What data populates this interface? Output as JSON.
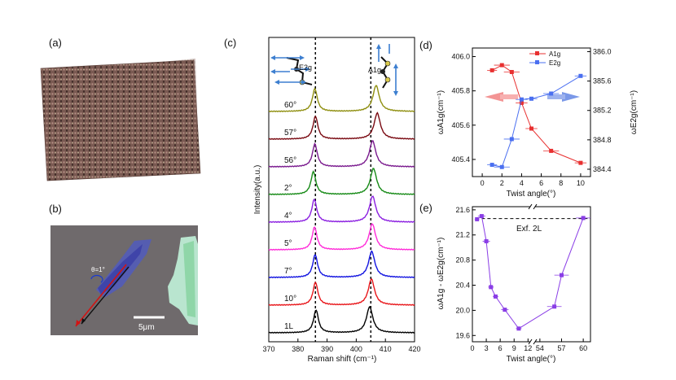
{
  "panels": {
    "a": {
      "label": "(a)"
    },
    "b": {
      "label": "(b)",
      "angle_text": "θ=1°",
      "scalebar": "5μm"
    },
    "c": {
      "label": "(c)",
      "chart_data": {
        "type": "line",
        "title": "",
        "xlabel": "Raman shift (cm⁻¹)",
        "ylabel": "Intensity(a.u.)",
        "xlim": [
          370,
          420
        ],
        "xticks": [
          370,
          380,
          390,
          400,
          410,
          420
        ],
        "dashed_lines": [
          386,
          405
        ],
        "mode_labels": {
          "left": "E2g",
          "right": "A1g"
        },
        "series": [
          {
            "name": "1L",
            "color": "#000000",
            "e2g": 386.2,
            "a1g": 404.6
          },
          {
            "name": "10°",
            "color": "#e8161a",
            "e2g": 386.0,
            "a1g": 405.2
          },
          {
            "name": "7°",
            "color": "#1214e0",
            "e2g": 385.9,
            "a1g": 405.3
          },
          {
            "name": "5°",
            "color": "#ff2bd8",
            "e2g": 385.7,
            "a1g": 405.5
          },
          {
            "name": "4°",
            "color": "#8a1ee0",
            "e2g": 385.6,
            "a1g": 405.6
          },
          {
            "name": "2°",
            "color": "#168a16",
            "e2g": 385.3,
            "a1g": 405.9
          },
          {
            "name": "56°",
            "color": "#7a1a8e",
            "e2g": 385.8,
            "a1g": 405.6
          },
          {
            "name": "57°",
            "color": "#7a0a12",
            "e2g": 386.0,
            "a1g": 407.2
          },
          {
            "name": "60°",
            "color": "#8f8f10",
            "e2g": 385.8,
            "a1g": 406.8
          }
        ]
      }
    },
    "d": {
      "label": "(d)",
      "chart_data": {
        "type": "scatter",
        "xlabel": "Twist angle(°)",
        "ylabel_left": "ωA1g(cm⁻¹)",
        "ylabel_right": "ωE2g(cm⁻¹)",
        "xlim": [
          -1,
          11
        ],
        "xticks": [
          0,
          2,
          4,
          6,
          8,
          10
        ],
        "ylim_left": [
          405.3,
          406.05
        ],
        "yticks_left": [
          405.4,
          405.6,
          405.8,
          406.0
        ],
        "ylim_right": [
          384.3,
          386.05
        ],
        "yticks_right": [
          384.4,
          384.8,
          385.2,
          385.6,
          386.0
        ],
        "legend": [
          "A1g",
          "E2g"
        ],
        "series": [
          {
            "name": "A1g",
            "axis": "left",
            "color": "#e83030",
            "x": [
              1,
              2,
              3,
              4,
              5,
              7,
              10
            ],
            "y": [
              405.92,
              405.95,
              405.91,
              405.73,
              405.58,
              405.45,
              405.38
            ],
            "xerr": [
              0.5,
              0.8,
              0.8,
              0.6,
              0.6,
              0.8,
              0.6
            ]
          },
          {
            "name": "E2g",
            "axis": "right",
            "color": "#4a6ff0",
            "x": [
              1,
              2,
              3,
              4,
              5,
              7,
              10
            ],
            "y": [
              384.46,
              384.43,
              384.81,
              385.35,
              385.36,
              385.43,
              385.67
            ],
            "xerr": [
              0.5,
              0.8,
              0.8,
              0.6,
              0.6,
              0.8,
              0.6
            ]
          }
        ]
      }
    },
    "e": {
      "label": "(e)",
      "annotation": "Exf. 2L",
      "chart_data": {
        "type": "scatter",
        "xlabel": "Twist angle(°)",
        "ylabel": "ωA1g - ωE2g(cm⁻¹)",
        "ylim": [
          19.5,
          21.65
        ],
        "yticks": [
          19.6,
          20.0,
          20.4,
          20.8,
          21.2,
          21.6
        ],
        "xticks": [
          0,
          3,
          6,
          9,
          12,
          54,
          57,
          60
        ],
        "axis_break": [
          13,
          53
        ],
        "reference_line": 21.46,
        "color": "#8a3ee6",
        "x": [
          1,
          2,
          3,
          4,
          5,
          7,
          10,
          56,
          57,
          60
        ],
        "y": [
          21.45,
          21.5,
          21.1,
          20.37,
          20.22,
          20.01,
          19.71,
          20.06,
          20.56,
          21.47
        ],
        "xerr": [
          0.5,
          0.8,
          0.8,
          0.6,
          0.6,
          0.8,
          0.6,
          1.0,
          1.0,
          1.0
        ]
      }
    }
  }
}
